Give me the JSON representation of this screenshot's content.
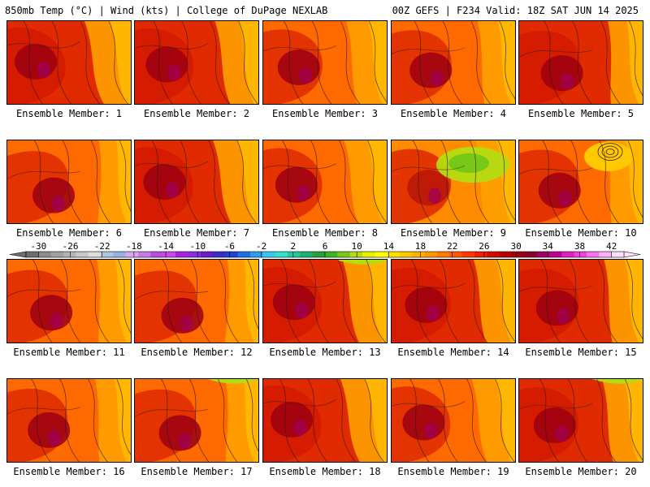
{
  "header": {
    "left": "850mb Temp (°C) | Wind (kts) | College of DuPage NEXLAB",
    "right": "00Z GEFS | F234 Valid: 18Z SAT JUN 14 2025"
  },
  "members": [
    {
      "label": "Ensemble Member: 1",
      "style": "hot"
    },
    {
      "label": "Ensemble Member: 2",
      "style": "hot"
    },
    {
      "label": "Ensemble Member: 3",
      "style": "warm"
    },
    {
      "label": "Ensemble Member: 4",
      "style": "warm"
    },
    {
      "label": "Ensemble Member: 5",
      "style": "hot"
    },
    {
      "label": "Ensemble Member: 6",
      "style": "warm"
    },
    {
      "label": "Ensemble Member: 7",
      "style": "hot"
    },
    {
      "label": "Ensemble Member: 8",
      "style": "warm"
    },
    {
      "label": "Ensemble Member: 9",
      "style": "cool"
    },
    {
      "label": "Ensemble Member: 10",
      "style": "warm"
    },
    {
      "label": "Ensemble Member: 11",
      "style": "warm"
    },
    {
      "label": "Ensemble Member: 12",
      "style": "warm"
    },
    {
      "label": "Ensemble Member: 13",
      "style": "hot"
    },
    {
      "label": "Ensemble Member: 14",
      "style": "hot"
    },
    {
      "label": "Ensemble Member: 15",
      "style": "hot"
    },
    {
      "label": "Ensemble Member: 16",
      "style": "warm"
    },
    {
      "label": "Ensemble Member: 17",
      "style": "warm"
    },
    {
      "label": "Ensemble Member: 18",
      "style": "hot"
    },
    {
      "label": "Ensemble Member: 19",
      "style": "warm"
    },
    {
      "label": "Ensemble Member: 20",
      "style": "hot"
    }
  ],
  "colorbar": {
    "labels": [
      "-30",
      "-26",
      "-22",
      "-18",
      "-14",
      "-10",
      "-6",
      "-2",
      "2",
      "6",
      "10",
      "14",
      "18",
      "22",
      "26",
      "30",
      "34",
      "38",
      "42"
    ],
    "colors": [
      "#6e6e6e",
      "#8c8c8c",
      "#a0a0a0",
      "#b4b4b4",
      "#c8c8c8",
      "#dcdcdc",
      "#b0c4de",
      "#9ab0e0",
      "#d6a8ec",
      "#c77ae6",
      "#b84fdc",
      "#cc44ee",
      "#aa22dd",
      "#8a2be2",
      "#6a1ec8",
      "#3a2ec8",
      "#1e40d8",
      "#1e6ee6",
      "#2c9ef0",
      "#36c8f0",
      "#30e0d0",
      "#22c8a0",
      "#20b070",
      "#2aa038",
      "#3cb428",
      "#78c818",
      "#b4dc10",
      "#e6f000",
      "#ffff00",
      "#ffe000",
      "#ffc800",
      "#ffb000",
      "#ff9600",
      "#ff7a00",
      "#ff5a00",
      "#ff3600",
      "#f01e00",
      "#d40a00",
      "#b80000",
      "#9c0010",
      "#880028",
      "#a00060",
      "#c00090",
      "#e020c0",
      "#f040e0",
      "#ff70f0",
      "#ffb0f8",
      "#ffe0ff"
    ]
  },
  "colors": {
    "hot_base": "#d41a00",
    "hot_core": "#9c0010",
    "warm_base": "#ff5a00",
    "warm_edge": "#ffa000",
    "cool_edge": "#b4dc10"
  }
}
